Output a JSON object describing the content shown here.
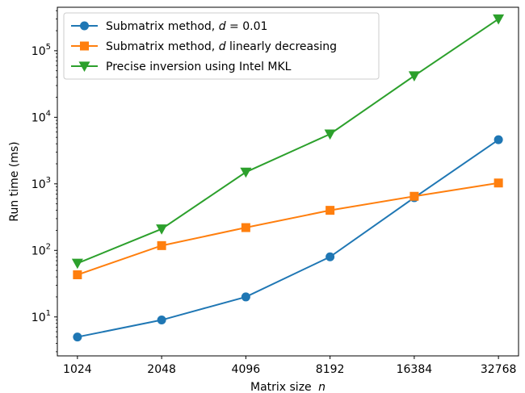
{
  "chart_data": {
    "type": "line",
    "xlabel": "Matrix size",
    "xlabel_var": "n",
    "ylabel": "Run time (ms)",
    "x": [
      1024,
      2048,
      4096,
      8192,
      16384,
      32768
    ],
    "x_scale": "log2",
    "y_scale": "log10",
    "ylim": [
      2.6,
      450000
    ],
    "y_ticks": [
      10,
      100,
      1000,
      10000,
      100000
    ],
    "y_tick_base": "10",
    "y_tick_exponents": [
      "1",
      "2",
      "3",
      "4",
      "5"
    ],
    "grid": false,
    "legend_position": "top-left",
    "series": [
      {
        "name_prefix": "Submatrix method, ",
        "name_var": "d",
        "name_suffix": " = 0.01",
        "color": "#1f77b4",
        "marker": "circle",
        "values": [
          5,
          9,
          20,
          80,
          620,
          4600
        ]
      },
      {
        "name_prefix": "Submatrix method, ",
        "name_var": "d",
        "name_suffix": " linearly decreasing",
        "color": "#ff7f0e",
        "marker": "square",
        "values": [
          43,
          118,
          220,
          400,
          650,
          1030
        ]
      },
      {
        "name_prefix": "Precise inversion using Intel MKL",
        "name_var": "",
        "name_suffix": "",
        "color": "#2ca02c",
        "marker": "triangle-down",
        "values": [
          64,
          210,
          1500,
          5600,
          42000,
          300000
        ]
      }
    ]
  }
}
